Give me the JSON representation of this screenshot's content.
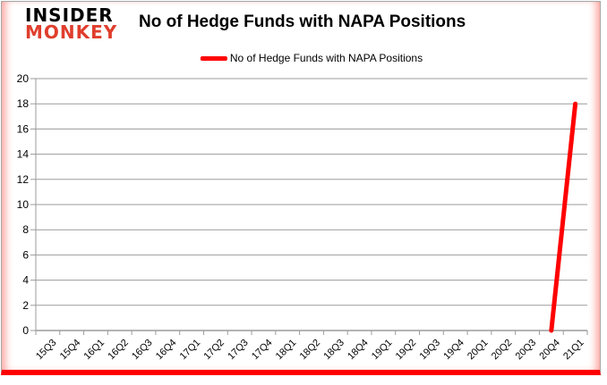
{
  "header": {
    "logo_line1": "INSIDER",
    "logo_line2": "MONKEY",
    "title": "No of Hedge Funds with NAPA Positions"
  },
  "legend": {
    "label": "No of Hedge Funds with NAPA Positions"
  },
  "colors": {
    "series_line": "#ff0000",
    "logo_accent": "#e03e2d",
    "gridline": "#9b9b9b",
    "axis": "#9b9b9b",
    "text": "#000000",
    "frame_bottom_bar": "#ff0000"
  },
  "chart_data": {
    "type": "line",
    "title": "No of Hedge Funds with NAPA Positions",
    "categories": [
      "15Q3",
      "15Q4",
      "16Q1",
      "16Q2",
      "16Q3",
      "16Q4",
      "17Q1",
      "17Q2",
      "17Q3",
      "17Q4",
      "18Q1",
      "18Q2",
      "18Q3",
      "18Q4",
      "19Q1",
      "19Q2",
      "19Q3",
      "19Q4",
      "20Q1",
      "20Q2",
      "20Q3",
      "20Q4",
      "21Q1"
    ],
    "series": [
      {
        "name": "No of Hedge Funds with NAPA Positions",
        "values": [
          null,
          null,
          null,
          null,
          null,
          null,
          null,
          null,
          null,
          null,
          null,
          null,
          null,
          null,
          null,
          null,
          null,
          null,
          null,
          null,
          null,
          0,
          18
        ]
      }
    ],
    "xlabel": "",
    "ylabel": "",
    "ylim": [
      0,
      20
    ],
    "ytick_step": 2,
    "grid": true,
    "legend_position": "top"
  }
}
